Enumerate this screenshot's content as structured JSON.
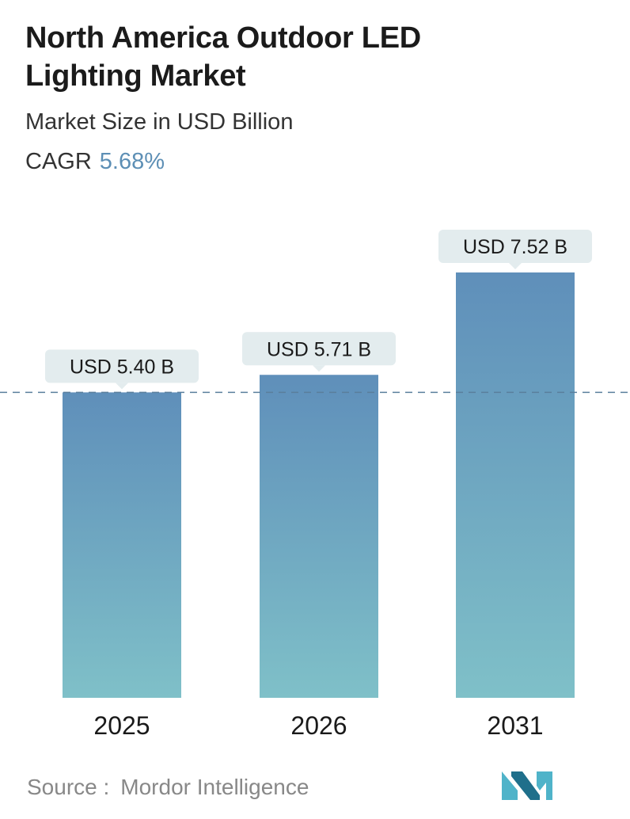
{
  "header": {
    "title": "North America Outdoor LED Lighting Market",
    "subtitle": "Market Size in USD Billion",
    "cagr_label": "CAGR",
    "cagr_value": "5.68%"
  },
  "footer": {
    "source_label": "Source :",
    "source_name": "Mordor Intelligence"
  },
  "colors": {
    "bar_top": "#5f8fba",
    "bar_bottom": "#7fc0c8",
    "callout_bg": "#e3ecee",
    "reference_line": "#5a7f9c",
    "cagr_value": "#5d8fb5",
    "logo_dark": "#1f6f8b",
    "logo_light": "#4fb3c9"
  },
  "chart_data": {
    "type": "bar",
    "categories": [
      "2025",
      "2026",
      "2031"
    ],
    "values": [
      5.4,
      5.71,
      7.52
    ],
    "value_labels": [
      "USD 5.40 B",
      "USD 5.71 B",
      "USD 7.52 B"
    ],
    "title": "North America Outdoor LED Lighting Market",
    "subtitle": "Market Size in USD Billion",
    "reference_line_value": 5.4,
    "grid": false,
    "legend": "none"
  }
}
